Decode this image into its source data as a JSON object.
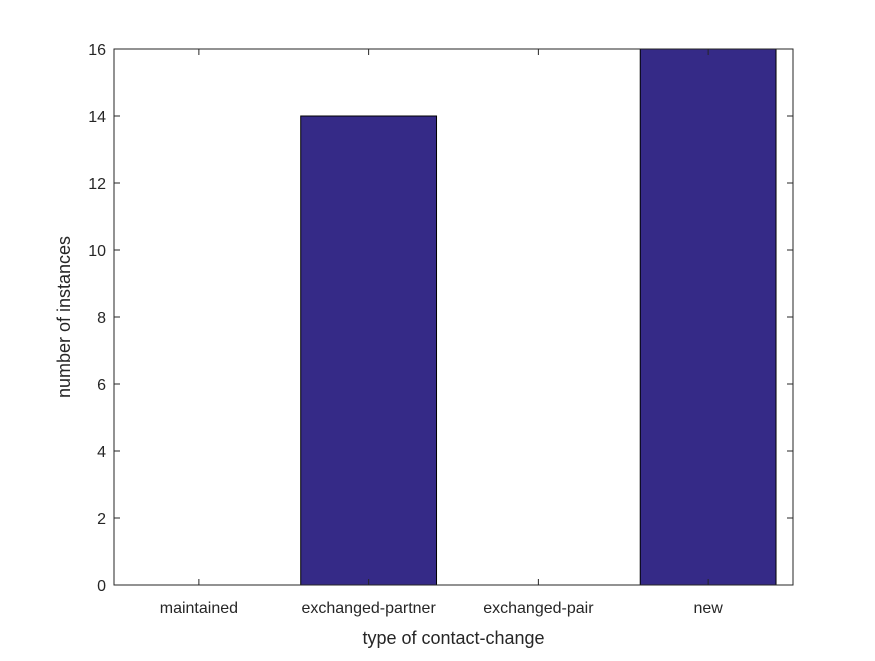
{
  "chart_data": {
    "type": "bar",
    "title": "",
    "xlabel": "type of contact-change",
    "ylabel": "number of instances",
    "categories": [
      "maintained",
      "exchanged-partner",
      "exchanged-pair",
      "new"
    ],
    "values": [
      0,
      14,
      0,
      16
    ],
    "ylim": [
      0,
      16
    ],
    "yticks": [
      0,
      2,
      4,
      6,
      8,
      10,
      12,
      14,
      16
    ],
    "grid": false,
    "bar_color": "#352a87"
  }
}
